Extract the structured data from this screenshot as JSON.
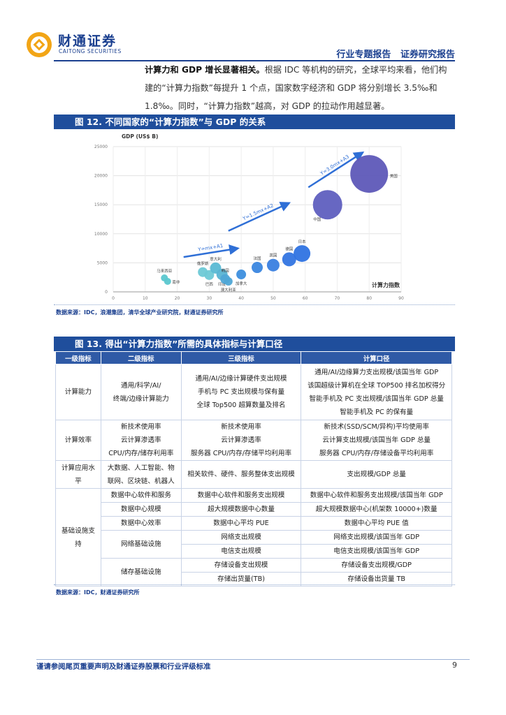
{
  "header": {
    "brand_cn": "财通证券",
    "brand_en": "CAITONG SECURITIES",
    "right_title": "行业专题报告   证券研究报告"
  },
  "intro": {
    "lead_bold": "计算力和 GDP 增长显著相关。",
    "line1_rest": "根据 IDC 等机构的研究，全球平均来看，他们构",
    "line2": "建的“计算力指数”每提升 1 个点，国家数字经济和 GDP 将分别增长 3.5‰和",
    "line3": "1.8‰。同时，“计算力指数”越高，对 GDP 的拉动作用越显著。"
  },
  "figure12": {
    "title": "图 12. 不同国家的“计算力指数”与 GDP 的关系",
    "source": "数据来源：IDC，浪潮集团，清华全球产业研究院，财通证券研究所"
  },
  "chart_data": {
    "type": "scatter",
    "title": "",
    "ylabel": "GDP (US$ B)",
    "xlabel": "计算力指数",
    "xlim": [
      0,
      90
    ],
    "ylim": [
      0,
      25000
    ],
    "x_ticks": [
      0,
      10,
      20,
      30,
      40,
      50,
      60,
      70,
      80,
      90
    ],
    "y_ticks": [
      0,
      5000,
      10000,
      15000,
      20000,
      25000
    ],
    "grid": true,
    "legend": "none",
    "points": [
      {
        "label": "马来西亚",
        "x": 16,
        "y": 2400,
        "size": 5,
        "color": "#5bc7cf"
      },
      {
        "label": "南非",
        "x": 17,
        "y": 1800,
        "size": 5,
        "color": "#5bc7cf"
      },
      {
        "label": "俄罗斯",
        "x": 28,
        "y": 3400,
        "size": 7,
        "color": "#6ec9d6"
      },
      {
        "label": "巴西",
        "x": 30,
        "y": 2900,
        "size": 7,
        "color": "#6ec9d6"
      },
      {
        "label": "意大利",
        "x": 32,
        "y": 4100,
        "size": 8,
        "color": "#59b9d4"
      },
      {
        "label": "印度",
        "x": 34,
        "y": 3000,
        "size": 8,
        "color": "#58b4d3"
      },
      {
        "label": "韩国",
        "x": 35,
        "y": 2200,
        "size": 7,
        "color": "#4fa7d6"
      },
      {
        "label": "澳大利亚",
        "x": 36,
        "y": 1800,
        "size": 6,
        "color": "#4fa7d6"
      },
      {
        "label": "加拿大",
        "x": 40,
        "y": 3000,
        "size": 7,
        "color": "#3d8fde"
      },
      {
        "label": "法国",
        "x": 45,
        "y": 4200,
        "size": 8,
        "color": "#3a86df"
      },
      {
        "label": "英国",
        "x": 50,
        "y": 4600,
        "size": 9,
        "color": "#3a80e0"
      },
      {
        "label": "德国",
        "x": 55,
        "y": 5600,
        "size": 10,
        "color": "#3375e2"
      },
      {
        "label": "日本",
        "x": 59,
        "y": 6600,
        "size": 12,
        "color": "#2f73e2"
      },
      {
        "label": "中国",
        "x": 67,
        "y": 15000,
        "size": 21,
        "color": "#5f5fbf"
      },
      {
        "label": "美国",
        "x": 80,
        "y": 20300,
        "size": 27,
        "color": "#5e58b8"
      }
    ],
    "annotations": [
      {
        "text": "Y=mx+A1",
        "x1": 22,
        "y1": 6000,
        "x2": 39,
        "y2": 7500
      },
      {
        "text": "Y=1.5mx+A2",
        "x1": 36,
        "y1": 10500,
        "x2": 55,
        "y2": 15300
      },
      {
        "text": "Y=3.0mx+A3",
        "x1": 61,
        "y1": 18000,
        "x2": 78,
        "y2": 24000
      }
    ]
  },
  "figure13": {
    "title": "图 13. 得出“计算力指数”所需的具体指标与计算口径",
    "source": "数据来源：IDC，财通证券研究所",
    "headers": [
      "一级指标",
      "二级指标",
      "三级指标",
      "计算口径"
    ],
    "rows": {
      "r1": {
        "c1": "计算能力",
        "c2": [
          "通用/科学/AI/",
          "终端/边缘计算能力"
        ],
        "c3": [
          "通用/AI/边缘计算硬件支出规模",
          "手机与 PC 支出规模与保有量",
          "全球 Top500 超算数量及排名"
        ],
        "c4": [
          "通用/AI/边缘算力支出规模/该国当年 GDP",
          "该国超级计算机在全球 TOP500 排名加权得分",
          "智能手机及 PC 支出规模/该国当年 GDP 总量",
          "智能手机及 PC 的保有量"
        ]
      },
      "r2": {
        "c1": "计算效率",
        "c2": [
          "新技术使用率",
          "云计算渗透率",
          "CPU/内存/储存利用率"
        ],
        "c3": [
          "新技术使用率",
          "云计算渗透率",
          "服务器 CPU/内存/存储平均利用率"
        ],
        "c4": [
          "新技术(SSD/SCM/异构)平均使用率",
          "云计算支出规模/该国当年 GDP 总量",
          "服务器 CPU/内存/存储设备平均利用率"
        ]
      },
      "r3": {
        "c1": [
          "计算应用水",
          "平"
        ],
        "c2": [
          "大数据、人工智能、物",
          "联网、区块链、机器人"
        ],
        "c3": "相关软件、硬件、服务整体支出规模",
        "c4": "支出规模/GDP 总量"
      },
      "r4": {
        "c1": [
          "基础设施支",
          "持"
        ],
        "a": {
          "c2": "数据中心软件和服务",
          "c3": "数据中心软件和服务支出规模",
          "c4": "数据中心软件和服务支出规模/该国当年 GDP"
        },
        "b": {
          "c2": "数据中心规模",
          "c3": "超大规模数据中心数量",
          "c4": "超大规模数据中心(机架数 10000+)数量"
        },
        "c": {
          "c2": "数据中心效率",
          "c3": "数据中心平均 PUE",
          "c4": "数据中心平均 PUE 值"
        },
        "d": {
          "c2": "网络基础设施",
          "c3": [
            "网络支出规模",
            "电信支出规模"
          ],
          "c4": [
            "网络支出规模/该国当年 GDP",
            "电信支出规模/该国当年 GDP"
          ]
        },
        "e": {
          "c2": "储存基础设施",
          "c3": [
            "存储设备支出规模",
            "存储出货量(TB)"
          ],
          "c4": [
            "存储设备支出规模/GDP",
            "存储设备出货量 TB"
          ]
        }
      }
    }
  },
  "footer": {
    "disclaimer": "谨请参阅尾页重要声明及财通证券股票和行业评级标准",
    "page": "9"
  }
}
